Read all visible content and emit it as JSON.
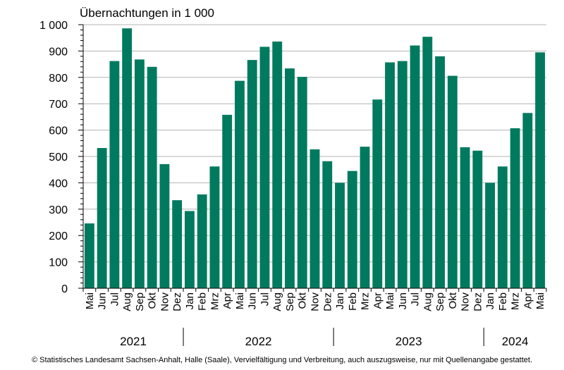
{
  "chart_data": {
    "type": "bar",
    "ylabel": "Übernachtungen in 1 000",
    "ylim": [
      0,
      1000
    ],
    "yticks": [
      0,
      100,
      200,
      300,
      400,
      500,
      600,
      700,
      800,
      900,
      1000
    ],
    "ytick_labels": [
      "0",
      "100",
      "200",
      "300",
      "400",
      "500",
      "600",
      "700",
      "800",
      "900",
      "1 000"
    ],
    "grid": "horizontal",
    "bar_color": "#007a5e",
    "categories": [
      "Mai",
      "Jun",
      "Jul",
      "Aug",
      "Sep",
      "Okt",
      "Nov",
      "Dez",
      "Jan",
      "Feb",
      "Mrz",
      "Apr",
      "Mai",
      "Jun",
      "Jul",
      "Aug",
      "Sep",
      "Okt",
      "Nov",
      "Dez",
      "Jan",
      "Feb",
      "Mrz",
      "Apr",
      "Mai",
      "Jun",
      "Jul",
      "Aug",
      "Sep",
      "Okt",
      "Nov",
      "Dez",
      "Jan",
      "Feb",
      "Mrz",
      "Apr",
      "Mai"
    ],
    "values": [
      246,
      532,
      862,
      986,
      868,
      840,
      471,
      334,
      293,
      356,
      462,
      658,
      787,
      866,
      916,
      936,
      834,
      802,
      527,
      482,
      400,
      445,
      537,
      716,
      857,
      862,
      921,
      954,
      880,
      806,
      535,
      522,
      400,
      462,
      607,
      665,
      895
    ],
    "years": [
      {
        "label": "2021",
        "start": 0,
        "end": 8
      },
      {
        "label": "2022",
        "start": 8,
        "end": 20
      },
      {
        "label": "2023",
        "start": 20,
        "end": 32
      },
      {
        "label": "2024",
        "start": 32,
        "end": 37
      }
    ]
  },
  "footer": {
    "source": "© Statistisches Landesamt Sachsen-Anhalt, Halle (Saale), Vervielfältigung und Verbreitung, auch auszugsweise, nur mit Quellenangabe gestattet."
  }
}
